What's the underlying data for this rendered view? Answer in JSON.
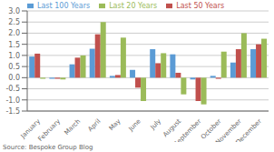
{
  "chart_data": {
    "type": "bar",
    "categories": [
      "January",
      "February",
      "March",
      "April",
      "May",
      "June",
      "July",
      "August",
      "September",
      "October",
      "November",
      "December"
    ],
    "series": [
      {
        "name": "Last 100 Years",
        "color": "#5b9bd5",
        "values": [
          0.95,
          -0.05,
          0.6,
          1.3,
          0.08,
          0.35,
          1.28,
          1.05,
          -0.08,
          0.08,
          0.68,
          1.28
        ]
      },
      {
        "name": "Last 50 Years",
        "color": "#c0504d",
        "values": [
          1.08,
          -0.05,
          0.9,
          1.95,
          0.12,
          -0.45,
          0.65,
          0.22,
          -1.05,
          -0.05,
          1.28,
          1.5
        ]
      },
      {
        "name": "Last 20 Years",
        "color": "#9bbb59",
        "values": [
          -0.05,
          -0.08,
          1.0,
          2.5,
          1.8,
          -1.05,
          1.1,
          -0.75,
          -1.2,
          1.17,
          2.0,
          1.75
        ]
      }
    ],
    "ylim": [
      -1.5,
      3.0
    ],
    "yticks": [
      -1.5,
      {
        "value": -1.0,
        "label": "-1.0"
      },
      -0.5,
      {
        "value": 0.0,
        "label": "0.0"
      },
      0.5,
      {
        "value": 1.0,
        "label": "1.0"
      },
      1.5,
      {
        "value": 2.0,
        "label": "2.0"
      },
      2.5,
      {
        "value": 3.0,
        "label": "3.0"
      }
    ],
    "grid": true,
    "legend": "upper left",
    "annotations": [
      "Source: Bespoke Group Blog"
    ]
  }
}
